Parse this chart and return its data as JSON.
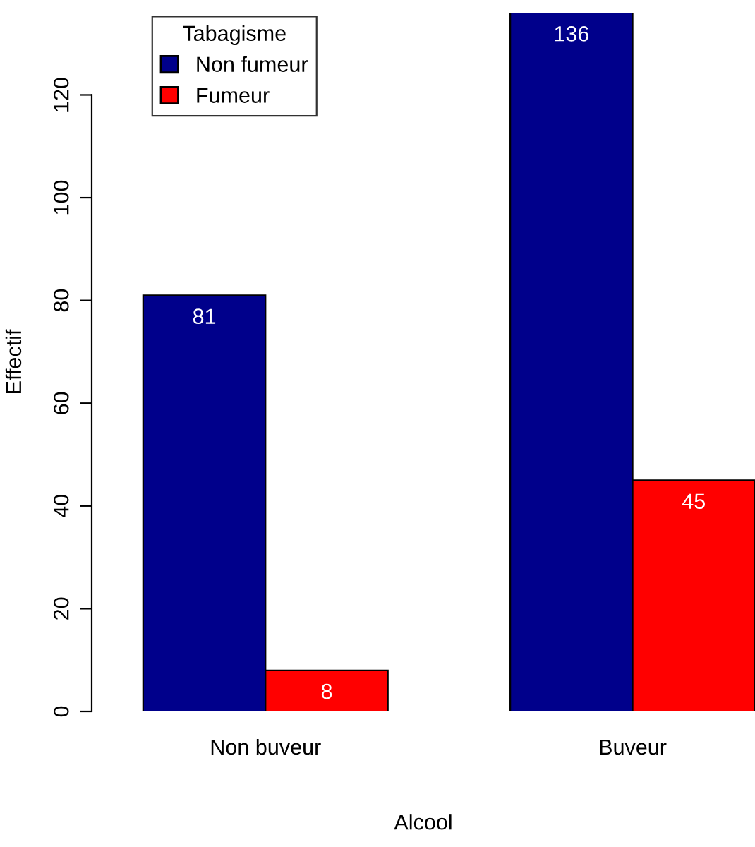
{
  "chart_data": {
    "type": "bar",
    "xlabel": "Alcool",
    "ylabel": "Effectif",
    "legend_title": "Tabagisme",
    "categories": [
      "Non buveur",
      "Buveur"
    ],
    "series": [
      {
        "name": "Non fumeur",
        "color": "#00008b",
        "values": [
          81,
          136
        ]
      },
      {
        "name": "Fumeur",
        "color": "#ff0000",
        "values": [
          8,
          45
        ]
      }
    ],
    "ylim": [
      0,
      136
    ],
    "yticks": [
      0,
      20,
      40,
      60,
      80,
      100,
      120
    ],
    "grid": false,
    "legend": "top left",
    "data_labels": true
  }
}
